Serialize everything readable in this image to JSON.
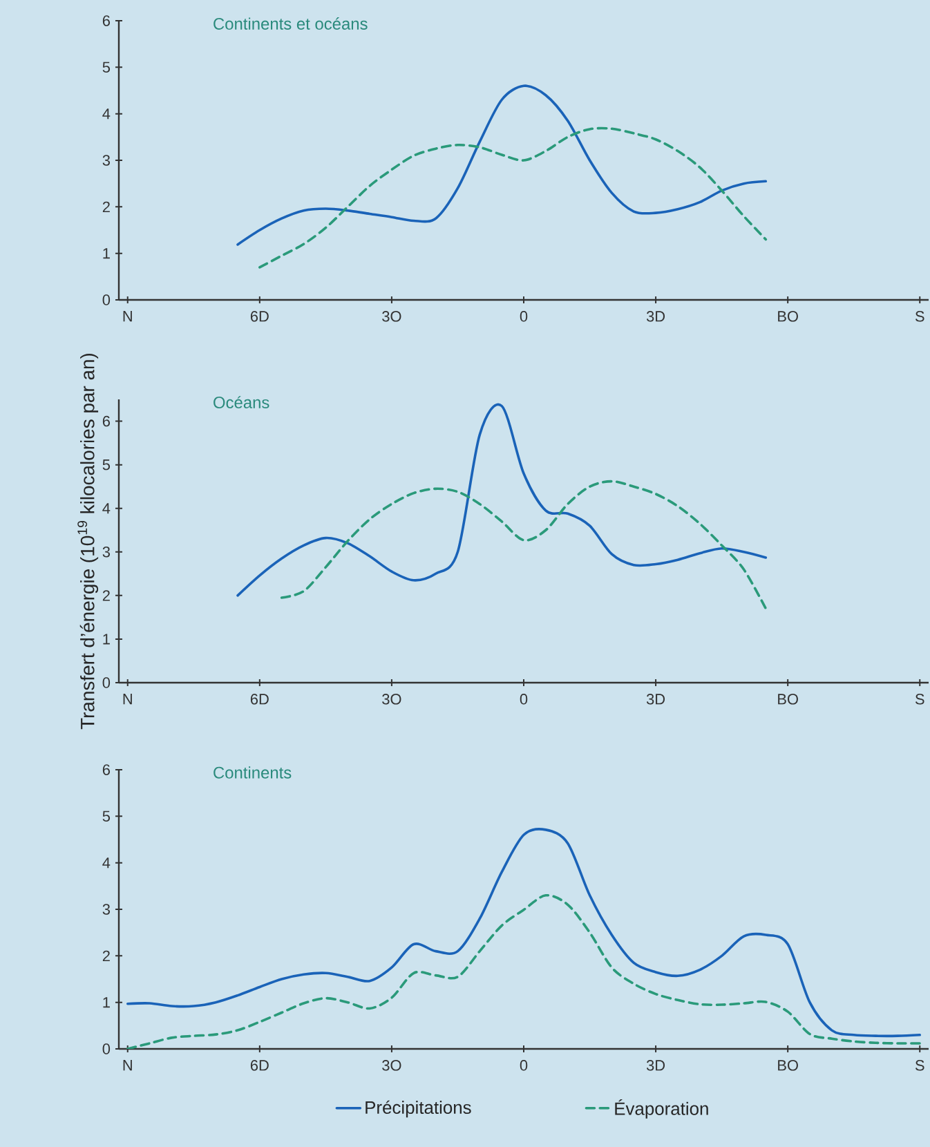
{
  "chart_data": [
    {
      "type": "line",
      "title": "Continents et océans",
      "ylim": [
        0,
        6
      ],
      "yticks": [
        0,
        1,
        2,
        3,
        4,
        5,
        6
      ],
      "categories": [
        "N",
        null,
        null,
        null,
        null,
        null,
        "6D",
        null,
        null,
        null,
        null,
        null,
        "3O",
        null,
        null,
        null,
        null,
        null,
        "0",
        null,
        null,
        null,
        null,
        null,
        "3D",
        null,
        null,
        null,
        null,
        null,
        "BO",
        null,
        null,
        null,
        null,
        null,
        "S"
      ],
      "grid": false,
      "marker": "none",
      "series": [
        {
          "color": "#1a63b8",
          "line_style": "solid",
          "values": [
            null,
            null,
            null,
            null,
            null,
            1.19,
            1.5,
            1.75,
            1.92,
            1.96,
            1.92,
            1.85,
            1.78,
            1.7,
            1.75,
            2.4,
            3.4,
            4.3,
            4.6,
            4.4,
            3.85,
            3.0,
            2.3,
            1.9,
            1.87,
            1.95,
            2.1,
            2.35,
            2.5,
            2.55,
            null,
            null,
            null,
            null,
            null,
            null,
            null
          ]
        },
        {
          "color": "#2a9a7a",
          "line_style": "dashed",
          "values": [
            null,
            null,
            null,
            null,
            null,
            null,
            0.7,
            0.95,
            1.2,
            1.55,
            2.0,
            2.45,
            2.8,
            3.1,
            3.25,
            3.33,
            3.28,
            3.12,
            3.0,
            3.2,
            3.5,
            3.67,
            3.68,
            3.58,
            3.45,
            3.2,
            2.85,
            2.35,
            1.8,
            1.3,
            null,
            null,
            null,
            null,
            null,
            null,
            null
          ]
        }
      ]
    },
    {
      "type": "line",
      "title": "Océans",
      "ylabel": "Transfert d’énergie (10$^{19}$ kilocalories par an)",
      "ylim": [
        0,
        6.5
      ],
      "yticks": [
        0,
        1,
        2,
        3,
        4,
        5,
        6
      ],
      "categories": [
        "N",
        null,
        null,
        null,
        null,
        null,
        "6D",
        null,
        null,
        null,
        null,
        null,
        "3O",
        null,
        null,
        null,
        null,
        null,
        "0",
        null,
        null,
        null,
        null,
        null,
        "3D",
        null,
        null,
        null,
        null,
        null,
        "BO",
        null,
        null,
        null,
        null,
        null,
        "S"
      ],
      "grid": false,
      "marker": "none",
      "series": [
        {
          "color": "#1a63b8",
          "line_style": "solid",
          "values": [
            null,
            null,
            null,
            null,
            null,
            2.0,
            2.46,
            2.85,
            3.15,
            3.32,
            3.2,
            2.9,
            2.55,
            2.35,
            2.5,
            3.0,
            5.69,
            6.35,
            4.8,
            3.95,
            3.88,
            3.6,
            2.95,
            2.7,
            2.72,
            2.82,
            2.97,
            3.08,
            3.0,
            2.87,
            null,
            null,
            null,
            null,
            null,
            null,
            null
          ]
        },
        {
          "color": "#2a9a7a",
          "line_style": "dashed",
          "values": [
            null,
            null,
            null,
            null,
            null,
            null,
            null,
            1.95,
            2.1,
            2.65,
            3.25,
            3.75,
            4.1,
            4.35,
            4.45,
            4.38,
            4.1,
            3.7,
            3.27,
            3.5,
            4.1,
            4.5,
            4.62,
            4.5,
            4.33,
            4.05,
            3.65,
            3.15,
            2.6,
            1.7,
            null,
            null,
            null,
            null,
            null,
            null,
            null
          ]
        }
      ]
    },
    {
      "type": "line",
      "title": "Continents",
      "ylim": [
        0,
        6
      ],
      "yticks": [
        0,
        1,
        2,
        3,
        4,
        5,
        6
      ],
      "categories": [
        "N",
        null,
        null,
        null,
        null,
        null,
        "6D",
        null,
        null,
        null,
        null,
        null,
        "3O",
        null,
        null,
        null,
        null,
        null,
        "0",
        null,
        null,
        null,
        null,
        null,
        "3D",
        null,
        null,
        null,
        null,
        null,
        "BO",
        null,
        null,
        null,
        null,
        null,
        "S"
      ],
      "grid": false,
      "marker": "none",
      "legend": "bottom",
      "series": [
        {
          "name": "Précipitations",
          "color": "#1a63b8",
          "line_style": "solid",
          "values": [
            0.97,
            0.98,
            0.92,
            0.92,
            1.0,
            1.15,
            1.33,
            1.5,
            1.6,
            1.63,
            1.55,
            1.46,
            1.75,
            2.25,
            2.1,
            2.1,
            2.8,
            3.8,
            4.6,
            4.71,
            4.42,
            3.3,
            2.45,
            1.85,
            1.65,
            1.57,
            1.7,
            2.0,
            2.42,
            2.45,
            2.25,
            1.0,
            0.4,
            0.3,
            0.28,
            0.28,
            0.3
          ]
        },
        {
          "name": "Évaporation",
          "color": "#2a9a7a",
          "line_style": "dashed",
          "values": [
            0,
            0.12,
            0.24,
            0.28,
            0.31,
            0.4,
            0.58,
            0.78,
            0.98,
            1.09,
            1.0,
            0.87,
            1.1,
            1.63,
            1.58,
            1.55,
            2.1,
            2.65,
            2.99,
            3.3,
            3.1,
            2.5,
            1.75,
            1.4,
            1.18,
            1.05,
            0.96,
            0.95,
            0.98,
            1.01,
            0.8,
            0.32,
            0.22,
            0.16,
            0.13,
            0.12,
            0.12
          ]
        }
      ]
    }
  ]
}
